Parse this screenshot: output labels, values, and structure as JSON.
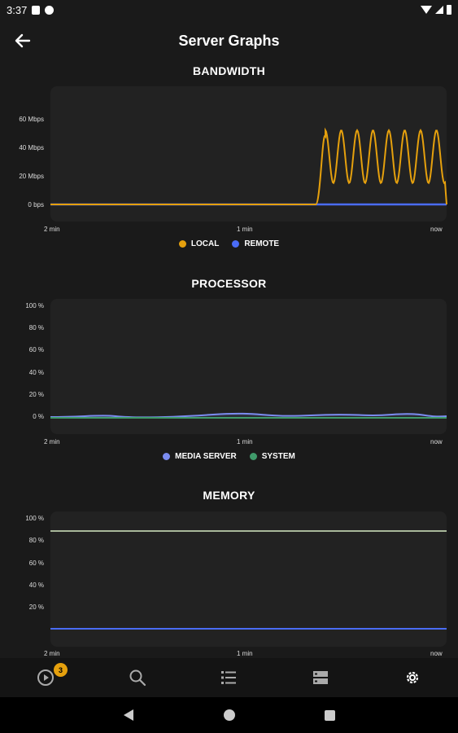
{
  "status": {
    "time": "3:37"
  },
  "header": {
    "title": "Server Graphs"
  },
  "bandwidth": {
    "title": "BANDWIDTH",
    "yticks": [
      "60 Mbps",
      "40 Mbps",
      "20 Mbps",
      "0 bps"
    ],
    "xticks": [
      "2 min",
      "1 min",
      "now"
    ],
    "legend": [
      {
        "label": "LOCAL",
        "color": "#e5a00d"
      },
      {
        "label": "REMOTE",
        "color": "#4a6cf7"
      }
    ]
  },
  "processor": {
    "title": "PROCESSOR",
    "yticks": [
      "100 %",
      "80 %",
      "60 %",
      "40 %",
      "20 %",
      "0 %"
    ],
    "xticks": [
      "2 min",
      "1 min",
      "now"
    ],
    "legend": [
      {
        "label": "MEDIA SERVER",
        "color": "#7b8cf0"
      },
      {
        "label": "SYSTEM",
        "color": "#3f9a6a"
      }
    ]
  },
  "memory": {
    "title": "MEMORY",
    "yticks": [
      "100 %",
      "80 %",
      "60 %",
      "40 %",
      "20 %"
    ],
    "xticks": [
      "2 min",
      "1 min",
      "now"
    ]
  },
  "nav": {
    "badge": "3"
  },
  "chart_data": [
    {
      "type": "line",
      "title": "BANDWIDTH",
      "ylabel": "",
      "ylim": [
        0,
        70
      ],
      "x_range": [
        "2 min",
        "now"
      ],
      "series": [
        {
          "name": "LOCAL",
          "color": "#e5a00d",
          "pattern": "oscillating 15-52 Mbps starting ~72% of range",
          "peak": 52,
          "trough": 15
        },
        {
          "name": "REMOTE",
          "color": "#4a6cf7",
          "values_flat": 0
        }
      ]
    },
    {
      "type": "line",
      "title": "PROCESSOR",
      "ylim": [
        0,
        100
      ],
      "series": [
        {
          "name": "MEDIA SERVER",
          "color": "#7b8cf0",
          "values_flat": 1
        },
        {
          "name": "SYSTEM",
          "color": "#3f9a6a",
          "values_flat": 0.5
        }
      ]
    },
    {
      "type": "line",
      "title": "MEMORY",
      "ylim": [
        0,
        100
      ],
      "series": [
        {
          "color": "#a8b89a",
          "values_flat": 88
        },
        {
          "color": "#4a6cf7",
          "values_flat": 3
        }
      ]
    }
  ]
}
